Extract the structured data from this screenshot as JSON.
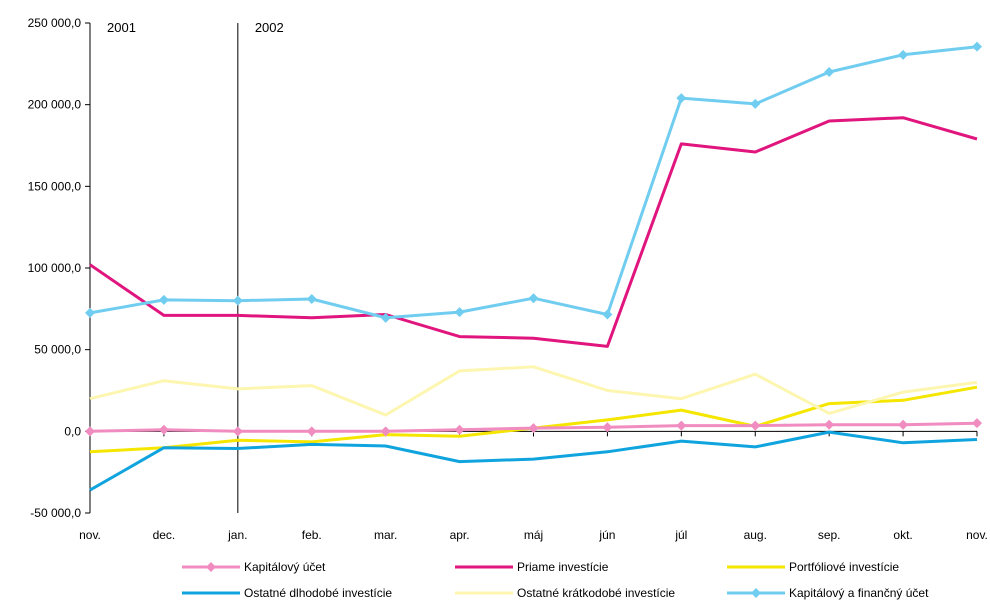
{
  "chart_data": {
    "type": "line",
    "title": "",
    "xlabel": "",
    "ylabel": "",
    "ylim": [
      -50000,
      250000
    ],
    "y_ticks": [
      -50000,
      0,
      50000,
      100000,
      150000,
      200000,
      250000
    ],
    "y_tick_labels": [
      "-50 000,0",
      "0,0",
      "50 000,0",
      "100 000,0",
      "150 000,0",
      "200 000,0",
      "250 000,0"
    ],
    "categories": [
      "nov.",
      "dec.",
      "jan.",
      "feb.",
      "mar.",
      "apr.",
      "máj",
      "jún",
      "júl",
      "aug.",
      "sep.",
      "okt.",
      "nov."
    ],
    "year_labels": [
      {
        "label": "2001",
        "at_index": 0
      },
      {
        "label": "2002",
        "at_index": 2
      }
    ],
    "grid": false,
    "legend_position": "bottom",
    "series": [
      {
        "name": "Kapitálový účet",
        "color": "#f08cc0",
        "marker": "diamond",
        "values": [
          0,
          1000,
          0,
          0,
          0,
          1000,
          2000,
          2500,
          3500,
          3500,
          4000,
          4000,
          5000
        ]
      },
      {
        "name": "Priame investície",
        "color": "#e0157e",
        "marker": "none",
        "values": [
          102000,
          71000,
          71000,
          69500,
          71500,
          58000,
          57000,
          52000,
          176000,
          171000,
          190000,
          192000,
          179000
        ]
      },
      {
        "name": "Portfóliové investície",
        "color": "#f5e600",
        "marker": "none",
        "values": [
          -12500,
          -10000,
          -5500,
          -6500,
          -2000,
          -3000,
          2000,
          7000,
          13000,
          3000,
          17000,
          19000,
          27000
        ]
      },
      {
        "name": "Ostatné dlhodobé investície",
        "color": "#10a4df",
        "marker": "none",
        "values": [
          -36000,
          -10000,
          -10500,
          -8000,
          -9000,
          -18500,
          -17000,
          -12500,
          -6000,
          -9500,
          -500,
          -7000,
          -5000
        ]
      },
      {
        "name": "Ostatné krátkodobé investície",
        "color": "#fdf6b0",
        "marker": "none",
        "values": [
          20000,
          31000,
          26000,
          28000,
          10000,
          37000,
          39500,
          25000,
          20000,
          35000,
          11000,
          24000,
          30000
        ]
      },
      {
        "name": "Kapitálový a finančný účet",
        "color": "#70cdf0",
        "marker": "diamond",
        "values": [
          72500,
          80500,
          80000,
          81000,
          69500,
          73000,
          81500,
          71500,
          204000,
          200500,
          220000,
          230500,
          235500
        ]
      }
    ]
  }
}
